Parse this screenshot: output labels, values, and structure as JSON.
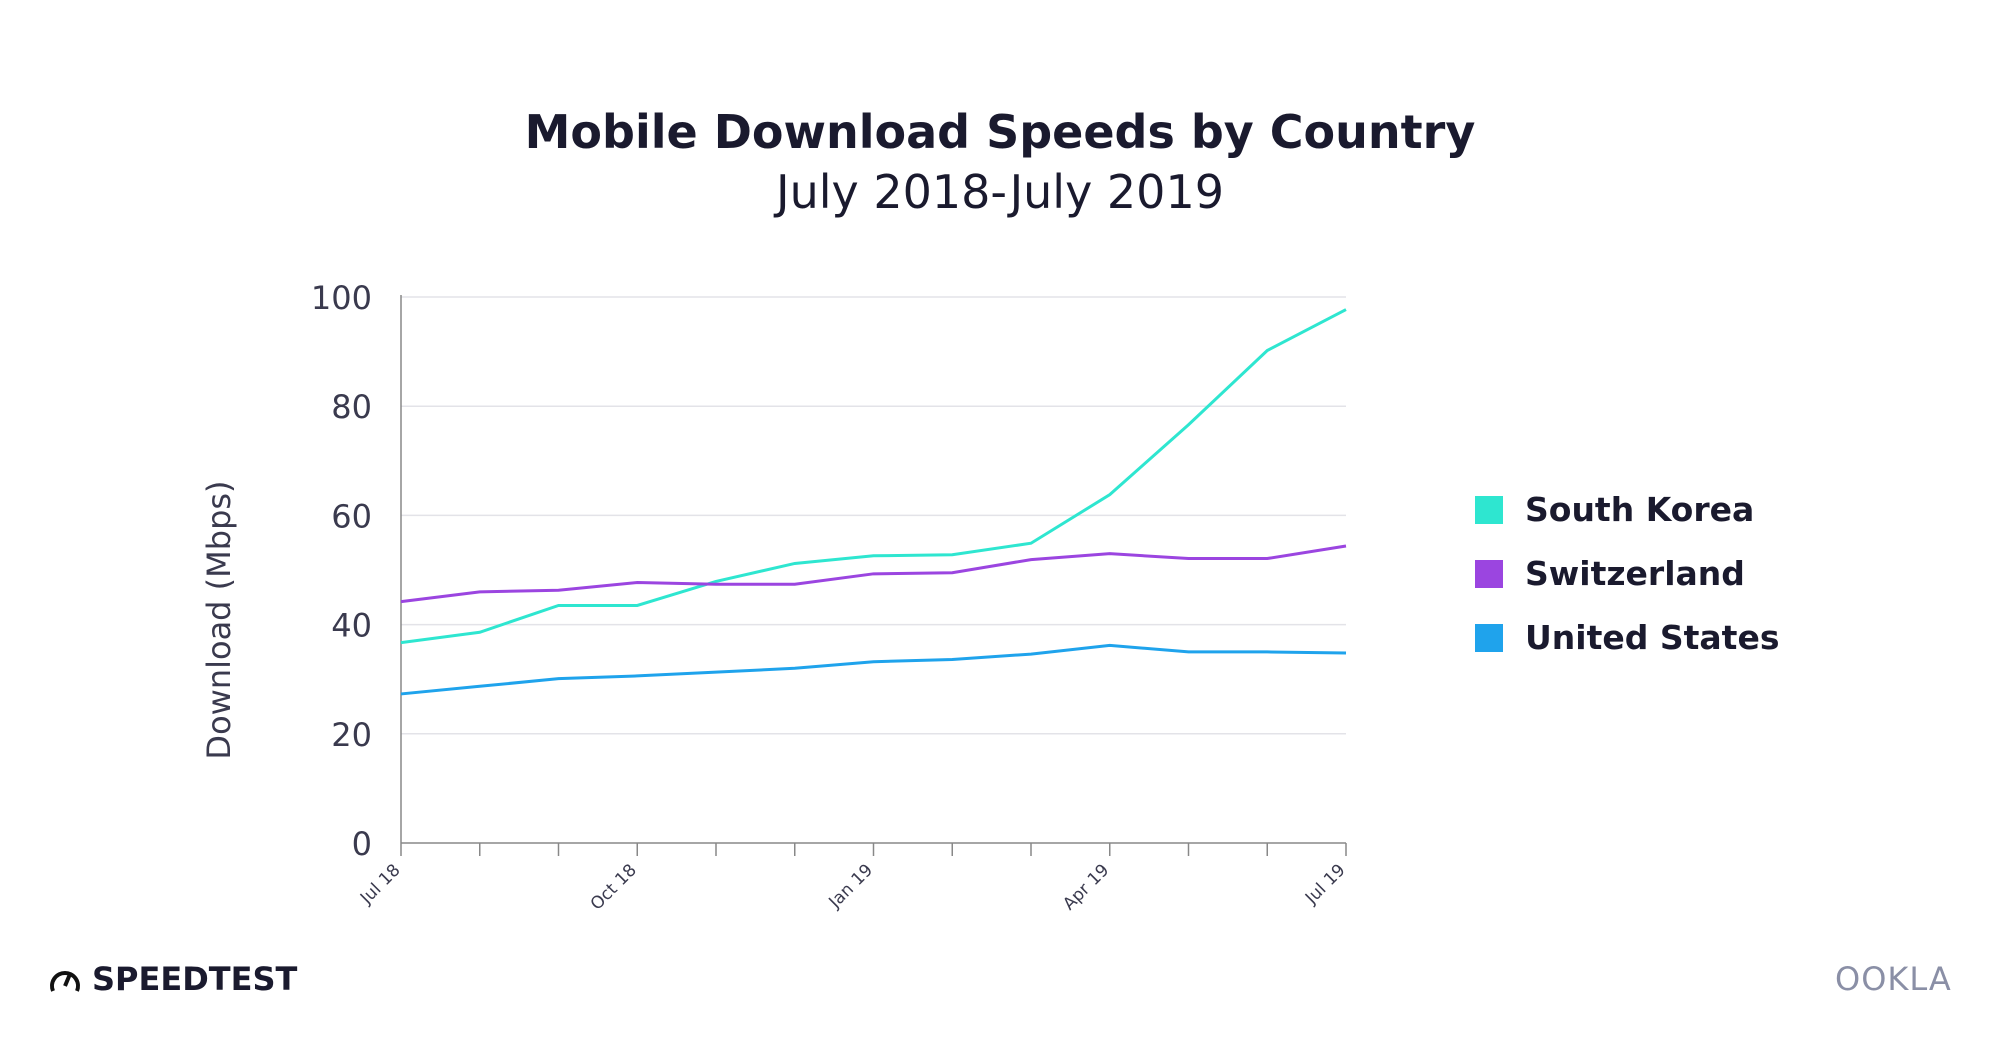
{
  "chart_data": {
    "type": "line",
    "title": "Mobile Download Speeds by Country",
    "subtitle": "July 2018-July 2019",
    "xlabel": "",
    "ylabel": "Download (Mbps)",
    "ylim": [
      0,
      100
    ],
    "yticks": [
      0,
      20,
      40,
      60,
      80,
      100
    ],
    "x": [
      "Jul 18",
      "Aug 18",
      "Sep 18",
      "Oct 18",
      "Nov 18",
      "Dec 18",
      "Jan 19",
      "Feb 19",
      "Mar 19",
      "Apr 19",
      "May 19",
      "Jun 19",
      "Jul 19"
    ],
    "xtick_labels": [
      "Jul 18",
      "",
      "",
      "Oct 18",
      "",
      "",
      "Jan 19",
      "",
      "",
      "Apr 19",
      "",
      "",
      "Jul 19"
    ],
    "grid": "horizontal",
    "legend_position": "right",
    "series": [
      {
        "name": "South Korea",
        "color": "#2ee6d0",
        "values": [
          36.7,
          38.6,
          43.5,
          43.5,
          47.9,
          51.2,
          52.6,
          52.8,
          54.9,
          63.8,
          76.6,
          90.2,
          97.7
        ]
      },
      {
        "name": "Switzerland",
        "color": "#9b45e0",
        "values": [
          44.2,
          46.0,
          46.3,
          47.7,
          47.4,
          47.4,
          49.3,
          49.5,
          51.9,
          53.0,
          52.1,
          52.1,
          54.4
        ]
      },
      {
        "name": "United States",
        "color": "#1fa3ec",
        "values": [
          27.3,
          28.7,
          30.1,
          30.6,
          31.3,
          32.0,
          33.2,
          33.6,
          34.6,
          36.2,
          35.0,
          35.0,
          34.8
        ]
      }
    ]
  },
  "branding": {
    "left": "SPEEDTEST",
    "right": "OOKLA"
  }
}
